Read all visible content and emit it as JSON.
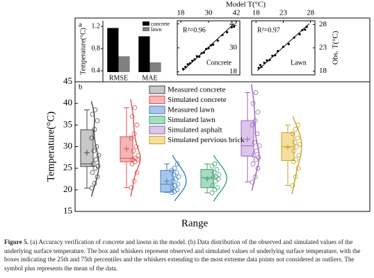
{
  "chart_data": [
    {
      "type": "bar",
      "panel_label": "a",
      "y_label": "Temperature(°C)",
      "categories": [
        "RMSE",
        "MAE"
      ],
      "series": [
        {
          "name": "concrete",
          "color": "#000000",
          "values": [
            1.17,
            1.02
          ]
        },
        {
          "name": "lawn",
          "color": "#808080",
          "values": [
            0.66,
            0.55
          ]
        }
      ],
      "ylim": [
        0.2,
        1.3
      ],
      "yticks": [
        0.4,
        0.8,
        1.2
      ]
    },
    {
      "type": "scatter",
      "annotation": "R²=0.96",
      "label": "Concrete",
      "x_label": "Model T(°C)",
      "x": [
        19,
        20,
        21,
        22,
        23,
        24,
        25,
        26,
        27,
        28,
        29,
        30,
        31,
        32,
        34,
        36,
        38,
        40,
        41
      ],
      "y": [
        19.5,
        20.5,
        21.8,
        22.3,
        23.5,
        24.2,
        25.8,
        25.6,
        27.3,
        27.6,
        29.4,
        29.8,
        31.2,
        31.6,
        33.6,
        36.4,
        37.8,
        40.3,
        40.6
      ],
      "xlim": [
        16.5,
        43.5
      ],
      "ylim": [
        16.5,
        43.5
      ],
      "xticks": [
        18,
        30,
        42
      ],
      "yticks": [
        18,
        30,
        42
      ]
    },
    {
      "type": "scatter",
      "annotation": "R²=0.97",
      "label": "Lawn",
      "y_label": "Obs. T(°C)",
      "x": [
        18.5,
        18.8,
        19,
        19.5,
        20,
        20.5,
        21,
        21.5,
        22,
        23,
        24,
        25,
        26,
        26.5,
        27,
        27.3
      ],
      "y": [
        18.7,
        19.3,
        18.9,
        19.8,
        20.3,
        20.4,
        21.3,
        21.4,
        22.3,
        23.2,
        23.8,
        25.2,
        25.9,
        26.8,
        26.9,
        27.5
      ],
      "xlim": [
        17.2,
        28.8
      ],
      "ylim": [
        17.2,
        28.8
      ],
      "xticks": [
        18,
        23,
        28
      ],
      "yticks": [
        18,
        23,
        28
      ]
    },
    {
      "type": "box",
      "panel_label": "b",
      "y_label": "Temperature(°C)",
      "x_label": "Range",
      "ylim": [
        15,
        45
      ],
      "yticks": [
        15,
        20,
        25,
        30,
        35,
        40,
        45
      ],
      "series": [
        {
          "name": "Measured concrete",
          "color": "#c8c8c8",
          "edge": "#444444",
          "whisker": [
            20.4,
            38.5
          ],
          "box": [
            25.4,
            33.9
          ],
          "median": 26,
          "mean": 28.6,
          "points": [
            20.4,
            21.5,
            23,
            24,
            25,
            25.5,
            26,
            27,
            28,
            29,
            30,
            32,
            34,
            36,
            37.5,
            38.5
          ]
        },
        {
          "name": "Simulated concrete",
          "color": "#f4b6b6",
          "edge": "#e05050",
          "whisker": [
            20.5,
            39
          ],
          "box": [
            26.5,
            32.3
          ],
          "median": 27.3,
          "mean": 29.5,
          "points": [
            20.5,
            22,
            24,
            26,
            26.5,
            27,
            27,
            27.3,
            28,
            29,
            30,
            32,
            33,
            35,
            37,
            39
          ]
        },
        {
          "name": "Measured lawn",
          "color": "#a9c6ea",
          "edge": "#3a7ec0",
          "whisker": [
            19.4,
            26
          ],
          "box": [
            19.5,
            24.5
          ],
          "median": 21.3,
          "mean": 22,
          "points": [
            19.4,
            19.6,
            20,
            20.5,
            21,
            21.3,
            22,
            22.5,
            23,
            23.5,
            24,
            24.5,
            25,
            26
          ]
        },
        {
          "name": "Simulated lawn",
          "color": "#a8dcc0",
          "edge": "#3aa070",
          "whisker": [
            19.3,
            26
          ],
          "box": [
            20.5,
            24.7
          ],
          "median": 22.8,
          "mean": 22.5,
          "points": [
            19.3,
            20,
            20.5,
            21,
            22,
            22.5,
            22.8,
            23,
            23.5,
            24,
            24.7,
            25.5,
            26
          ]
        },
        {
          "name": "Simulated asphalt",
          "color": "#dcc6e8",
          "edge": "#9a5ec0",
          "whisker": [
            21.8,
            42.5
          ],
          "box": [
            27.8,
            36
          ],
          "median": 30.2,
          "mean": 31.7,
          "points": [
            21.8,
            23,
            25,
            26,
            27,
            27.5,
            28,
            29,
            30.2,
            31,
            33,
            35,
            36,
            38,
            40,
            42.5
          ]
        },
        {
          "name": "Simulated pervious brick",
          "color": "#f5dfa0",
          "edge": "#c8a020",
          "whisker": [
            21,
            35
          ],
          "box": [
            26.8,
            33.2
          ],
          "median": 30,
          "mean": 29.8,
          "points": [
            21,
            23,
            25,
            26.5,
            27,
            28,
            29,
            30,
            30.5,
            31,
            32,
            33,
            34,
            35
          ]
        }
      ]
    }
  ],
  "caption": {
    "label": "Figure 5.",
    "text": "(a) Accuracy verification of concrete and lawns in the model. (b) Data distribution of the observed and simulated values of the underlying surface temperature. The box and whiskers represent observed and simulated values of underlying surface temperature, with the boxes indicating the 25th and 75th percentiles and the whiskers extending to the most extreme data points not considered as outliers. The symbol plus represents the mean of the data."
  }
}
